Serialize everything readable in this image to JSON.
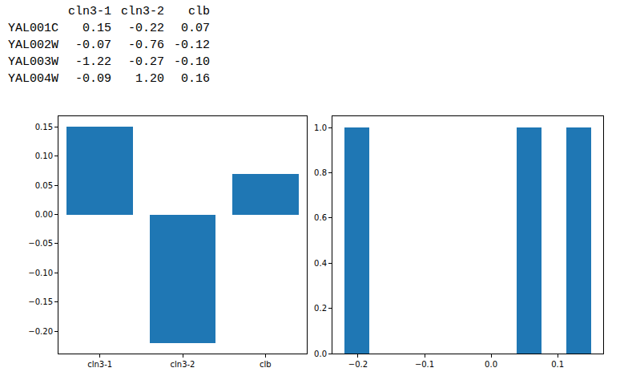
{
  "table": {
    "columns": [
      "cln3-1",
      "cln3-2",
      "clb"
    ],
    "rows": [
      {
        "index": "YAL001C",
        "cells": [
          "0.15",
          "-0.22",
          "0.07"
        ]
      },
      {
        "index": "YAL002W",
        "cells": [
          "-0.07",
          "-0.76",
          "-0.12"
        ]
      },
      {
        "index": "YAL003W",
        "cells": [
          "-1.22",
          "-0.27",
          "-0.10"
        ]
      },
      {
        "index": "YAL004W",
        "cells": [
          "-0.09",
          "1.20",
          "0.16"
        ]
      }
    ]
  },
  "chart_data": [
    {
      "type": "bar",
      "categories": [
        "cln3-1",
        "cln3-2",
        "clb"
      ],
      "values": [
        0.15,
        -0.22,
        0.07
      ],
      "color": "#1f77b4",
      "ylim": [
        -0.2385,
        0.1685
      ],
      "yticks": [
        {
          "value": -0.2,
          "label": "−0.20"
        },
        {
          "value": -0.15,
          "label": "−0.15"
        },
        {
          "value": -0.1,
          "label": "−0.10"
        },
        {
          "value": -0.05,
          "label": "−0.05"
        },
        {
          "value": 0,
          "label": "0.00"
        },
        {
          "value": 0.05,
          "label": "0.05"
        },
        {
          "value": 0.1,
          "label": "0.10"
        },
        {
          "value": 0.15,
          "label": "0.15"
        }
      ],
      "grid": false
    },
    {
      "type": "histogram",
      "bins": [
        -0.22,
        -0.183,
        -0.146,
        -0.109,
        -0.072,
        -0.035,
        0.002,
        0.039,
        0.076,
        0.113,
        0.15
      ],
      "counts": [
        1,
        0,
        0,
        0,
        0,
        0,
        0,
        1,
        0,
        1
      ],
      "color": "#1f77b4",
      "xlim": [
        -0.2385,
        0.1685
      ],
      "xticks": [
        {
          "value": -0.2,
          "label": "−0.2"
        },
        {
          "value": -0.1,
          "label": "−0.1"
        },
        {
          "value": 0,
          "label": "0.0"
        },
        {
          "value": 0.1,
          "label": "0.1"
        }
      ],
      "ylim": [
        0,
        1.05
      ],
      "yticks": [
        {
          "value": 0,
          "label": "0.0"
        },
        {
          "value": 0.2,
          "label": "0.2"
        },
        {
          "value": 0.4,
          "label": "0.4"
        },
        {
          "value": 0.6,
          "label": "0.6"
        },
        {
          "value": 0.8,
          "label": "0.8"
        },
        {
          "value": 1,
          "label": "1.0"
        }
      ],
      "grid": false
    }
  ]
}
